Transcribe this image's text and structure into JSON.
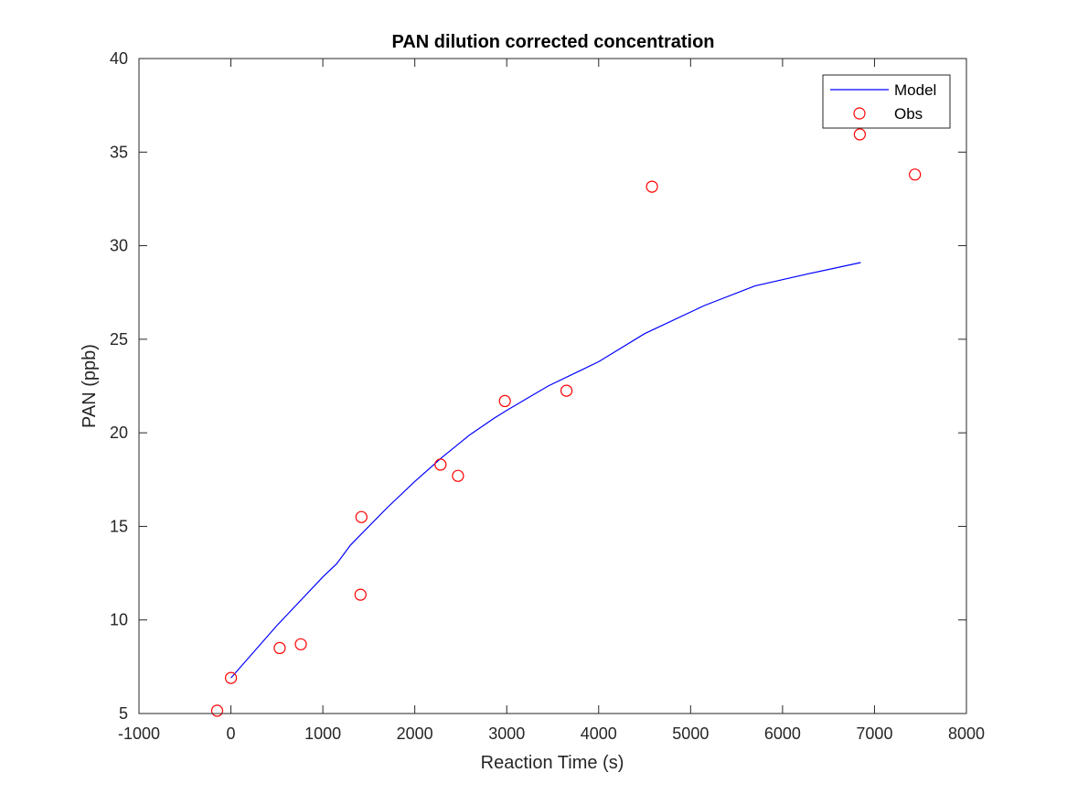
{
  "chart_data": {
    "type": "line",
    "title": "PAN dilution corrected concentration",
    "xlabel": "Reaction Time (s)",
    "ylabel": "PAN (ppb)",
    "xlim": [
      -1000,
      8000
    ],
    "ylim": [
      5,
      40
    ],
    "xticks": [
      "-1000",
      "0",
      "1000",
      "2000",
      "3000",
      "4000",
      "5000",
      "6000",
      "7000",
      "8000"
    ],
    "yticks": [
      "5",
      "10",
      "15",
      "20",
      "25",
      "30",
      "35",
      "40"
    ],
    "grid": false,
    "legend_position": "top-right",
    "series": [
      {
        "name": "Model",
        "style": "line",
        "color": "#0000ff",
        "x": [
          0,
          500,
          1000,
          1150,
          1300,
          1700,
          2000,
          2300,
          2600,
          2870,
          3000,
          3450,
          4000,
          4500,
          5150,
          5700,
          6280,
          6850
        ],
        "y": [
          6.9,
          9.7,
          12.3,
          13.0,
          14.0,
          16.0,
          17.4,
          18.7,
          19.9,
          20.8,
          21.2,
          22.5,
          23.8,
          25.3,
          26.8,
          27.85,
          28.5,
          29.1
        ]
      },
      {
        "name": "Obs",
        "style": "marker",
        "color": "#ff0000",
        "x": [
          -150,
          0,
          530,
          760,
          1410,
          1420,
          2280,
          2470,
          2980,
          3650,
          4580,
          6840,
          7440
        ],
        "y": [
          5.15,
          6.9,
          8.5,
          8.7,
          11.35,
          15.5,
          18.3,
          17.7,
          21.7,
          22.25,
          33.15,
          35.95,
          33.8
        ]
      }
    ]
  }
}
